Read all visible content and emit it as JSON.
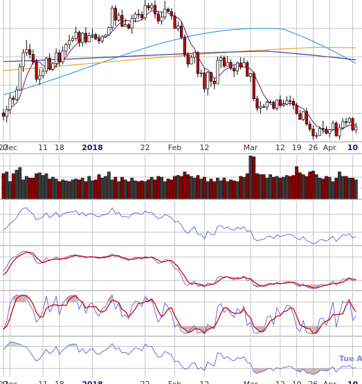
{
  "colors": {
    "background": "#ffffff",
    "panel_bg": "#ffffff",
    "grid": "#c4c4c4",
    "panel_border": "#9a9a9a",
    "candle_up": "#ffffff",
    "candle_down": "#c00000",
    "candle_outline": "#000000",
    "ma_short": "#8a2d8a",
    "ma_mid": "#3a3aa0",
    "ma_long": "#f0a030",
    "ma_blue": "#33a0e0",
    "volume_up": "#3a3a3a",
    "volume_down": "#8a0000",
    "indicator_line": "#6a6ae0",
    "signal_line": "#d01010",
    "fill": "#c8a8a8",
    "fill_green": "#b8d8b8"
  },
  "chart_data": {
    "type": "candlestick-with-indicators",
    "x_tick_labels": [
      {
        "label": "27",
        "index": 0
      },
      {
        "label": "Dec",
        "index": 2
      },
      {
        "label": "11",
        "index": 12
      },
      {
        "label": "18",
        "index": 17
      },
      {
        "label": "2018",
        "index": 27,
        "bold": true
      },
      {
        "label": "22",
        "index": 43
      },
      {
        "label": "Feb",
        "index": 52
      },
      {
        "label": "12",
        "index": 61
      },
      {
        "label": "Mar",
        "index": 75
      },
      {
        "label": "12",
        "index": 84
      },
      {
        "label": "19",
        "index": 89
      },
      {
        "label": "26",
        "index": 94
      },
      {
        "label": "Apr",
        "index": 99
      },
      {
        "label": "10",
        "index": 106,
        "bold": true
      }
    ],
    "corner_tag": "Tue A",
    "price_ylim": [
      82,
      132
    ],
    "candles": [
      [
        92.2,
        91.0,
        93.7,
        89.5
      ],
      [
        91.0,
        93.3,
        94.7,
        88.9
      ],
      [
        93.3,
        97.4,
        99.0,
        91.9
      ],
      [
        97.4,
        96.9,
        98.4,
        95.2
      ],
      [
        96.9,
        100.3,
        101.6,
        96.4
      ],
      [
        100.3,
        108.5,
        109.7,
        100.0
      ],
      [
        108.5,
        113.4,
        114.7,
        106.6
      ],
      [
        113.4,
        114.5,
        117.9,
        112.3
      ],
      [
        114.5,
        112.8,
        116.6,
        111.4
      ],
      [
        112.8,
        110.1,
        114.6,
        109.3
      ],
      [
        110.1,
        104.1,
        111.4,
        103.0
      ],
      [
        104.1,
        105.3,
        107.7,
        102.1
      ],
      [
        105.3,
        106.9,
        107.9,
        104.4
      ],
      [
        106.9,
        111.5,
        112.0,
        106.0
      ],
      [
        111.5,
        107.6,
        113.2,
        107.1
      ],
      [
        107.6,
        109.6,
        110.2,
        107.0
      ],
      [
        109.6,
        113.4,
        114.9,
        108.1
      ],
      [
        113.4,
        110.2,
        114.4,
        108.6
      ],
      [
        110.2,
        114.0,
        115.7,
        109.3
      ],
      [
        114.0,
        116.2,
        116.9,
        112.5
      ],
      [
        116.2,
        117.8,
        119.7,
        114.7
      ],
      [
        117.8,
        118.5,
        119.4,
        117.1
      ],
      [
        118.5,
        120.6,
        122.6,
        117.6
      ],
      [
        120.6,
        117.0,
        121.3,
        115.5
      ],
      [
        117.0,
        120.3,
        120.7,
        115.6
      ],
      [
        120.3,
        117.2,
        122.4,
        116.6
      ],
      [
        117.2,
        119.5,
        120.6,
        117.1
      ],
      [
        119.5,
        119.8,
        121.9,
        118.5
      ],
      [
        119.8,
        118.3,
        120.3,
        117.8
      ],
      [
        118.3,
        117.6,
        119.8,
        116.5
      ],
      [
        117.6,
        119.1,
        119.6,
        116.7
      ],
      [
        119.1,
        119.7,
        119.9,
        118.7
      ],
      [
        119.7,
        122.3,
        122.7,
        119.7
      ],
      [
        122.3,
        129.1,
        130.1,
        121.4
      ],
      [
        129.1,
        124.9,
        130.2,
        122.9
      ],
      [
        124.9,
        126.6,
        127.6,
        124.4
      ],
      [
        126.6,
        122.7,
        128.6,
        122.5
      ],
      [
        122.7,
        123.3,
        125.4,
        122.8
      ],
      [
        123.3,
        122.1,
        123.9,
        121.6
      ],
      [
        122.1,
        125.5,
        126.8,
        120.1
      ],
      [
        125.5,
        127.0,
        127.8,
        124.1
      ],
      [
        127.0,
        126.9,
        128.7,
        125.3
      ],
      [
        126.9,
        125.8,
        128.0,
        124.8
      ],
      [
        125.8,
        130.0,
        132.0,
        124.9
      ],
      [
        130.0,
        129.2,
        131.0,
        128.1
      ],
      [
        129.2,
        130.1,
        131.0,
        128.3
      ],
      [
        130.1,
        127.1,
        131.9,
        125.5
      ],
      [
        127.1,
        124.6,
        128.2,
        123.6
      ],
      [
        124.6,
        126.0,
        127.7,
        123.3
      ],
      [
        126.0,
        128.8,
        131.7,
        125.1
      ],
      [
        128.8,
        127.9,
        129.4,
        127.9
      ],
      [
        127.9,
        126.4,
        129.1,
        125.1
      ],
      [
        126.4,
        122.0,
        127.7,
        121.8
      ],
      [
        122.0,
        122.8,
        124.4,
        120.9
      ],
      [
        122.8,
        118.9,
        124.4,
        118.1
      ],
      [
        118.9,
        112.7,
        119.8,
        111.8
      ],
      [
        112.7,
        109.4,
        113.7,
        108.2
      ],
      [
        109.4,
        111.8,
        112.5,
        109.3
      ],
      [
        111.8,
        113.5,
        113.8,
        109.7
      ],
      [
        113.5,
        106.1,
        113.9,
        104.8
      ],
      [
        106.1,
        106.3,
        107.5,
        104.8
      ],
      [
        106.3,
        100.7,
        108.1,
        99.4
      ],
      [
        100.7,
        106.5,
        107.0,
        98.4
      ],
      [
        106.5,
        103.4,
        106.7,
        101.4
      ],
      [
        103.4,
        102.5,
        104.5,
        100.6
      ],
      [
        102.5,
        110.7,
        112.1,
        102.5
      ],
      [
        110.7,
        111.6,
        112.5,
        108.0
      ],
      [
        111.6,
        108.7,
        112.4,
        108.0
      ],
      [
        108.7,
        110.0,
        112.3,
        109.2
      ],
      [
        110.0,
        107.9,
        111.1,
        107.3
      ],
      [
        107.9,
        107.0,
        109.0,
        104.8
      ],
      [
        107.0,
        109.8,
        110.3,
        105.7
      ],
      [
        109.8,
        108.3,
        111.8,
        107.5
      ],
      [
        108.3,
        109.9,
        111.6,
        108.3
      ],
      [
        109.9,
        105.1,
        110.6,
        104.9
      ],
      [
        105.1,
        106.1,
        106.3,
        103.2
      ],
      [
        106.1,
        97.2,
        106.9,
        96.3
      ],
      [
        97.2,
        93.9,
        98.2,
        92.8
      ],
      [
        93.9,
        94.4,
        96.3,
        92.0
      ],
      [
        94.4,
        94.2,
        95.4,
        94.2
      ],
      [
        94.2,
        96.0,
        96.5,
        93.1
      ],
      [
        96.0,
        96.0,
        96.8,
        95.8
      ],
      [
        96.0,
        93.8,
        96.5,
        93.3
      ],
      [
        93.8,
        96.8,
        96.9,
        93.0
      ],
      [
        96.8,
        94.8,
        98.4,
        93.9
      ],
      [
        94.8,
        95.3,
        96.8,
        94.3
      ],
      [
        95.3,
        96.5,
        98.0,
        94.8
      ],
      [
        96.5,
        96.3,
        98.3,
        94.7
      ],
      [
        96.3,
        94.9,
        97.4,
        93.3
      ],
      [
        94.9,
        92.0,
        95.8,
        91.5
      ],
      [
        92.0,
        89.9,
        93.3,
        89.9
      ],
      [
        89.9,
        92.7,
        92.9,
        89.3
      ],
      [
        92.7,
        88.3,
        94.0,
        87.6
      ],
      [
        88.3,
        86.5,
        89.5,
        85.6
      ],
      [
        86.5,
        84.1,
        87.8,
        82.8
      ],
      [
        84.1,
        84.2,
        85.3,
        83.1
      ],
      [
        84.2,
        86.7,
        87.5,
        84.3
      ],
      [
        86.7,
        86.5,
        89.4,
        84.9
      ],
      [
        86.5,
        85.0,
        87.5,
        84.6
      ],
      [
        85.0,
        86.3,
        86.6,
        83.7
      ],
      [
        86.3,
        88.6,
        89.5,
        86.3
      ],
      [
        88.6,
        84.1,
        89.4,
        83.8
      ],
      [
        84.1,
        86.9,
        88.3,
        82.8
      ],
      [
        86.9,
        89.1,
        90.3,
        86.3
      ],
      [
        89.1,
        88.9,
        90.5,
        87.6
      ],
      [
        88.9,
        90.2,
        90.8,
        88.4
      ],
      [
        90.2,
        86.2,
        90.7,
        85.7
      ],
      [
        86.2,
        87.2,
        88.7,
        85.0
      ]
    ],
    "volume": [
      58,
      62,
      40,
      58,
      66,
      72,
      44,
      52,
      48,
      48,
      58,
      60,
      54,
      58,
      46,
      50,
      46,
      40,
      44,
      42,
      40,
      44,
      46,
      44,
      48,
      40,
      52,
      42,
      44,
      56,
      48,
      52,
      62,
      44,
      50,
      40,
      50,
      44,
      40,
      48,
      42,
      40,
      42,
      40,
      44,
      50,
      44,
      52,
      50,
      40,
      46,
      44,
      52,
      54,
      52,
      62,
      56,
      52,
      48,
      54,
      46,
      50,
      40,
      46,
      40,
      48,
      42,
      48,
      40,
      44,
      42,
      40,
      52,
      50,
      58,
      98,
      96,
      58,
      56,
      56,
      48,
      56,
      50,
      52,
      48,
      50,
      54,
      52,
      54,
      74,
      60,
      56,
      52,
      62,
      64,
      56,
      48,
      46,
      52,
      50,
      40,
      48,
      62,
      52,
      52,
      48,
      48,
      44
    ],
    "volume_ylim": [
      0,
      100
    ],
    "ind1": [
      35,
      40,
      49,
      55,
      62,
      76,
      83,
      84,
      76,
      70,
      57,
      61,
      64,
      73,
      62,
      67,
      74,
      64,
      70,
      73,
      74,
      75,
      78,
      68,
      74,
      66,
      71,
      71,
      66,
      64,
      68,
      69,
      73,
      84,
      71,
      74,
      64,
      65,
      62,
      70,
      73,
      72,
      69,
      77,
      73,
      74,
      66,
      60,
      63,
      69,
      66,
      62,
      52,
      54,
      46,
      33,
      27,
      36,
      42,
      25,
      26,
      15,
      32,
      25,
      24,
      43,
      45,
      38,
      42,
      36,
      34,
      41,
      37,
      42,
      31,
      34,
      15,
      11,
      13,
      14,
      20,
      21,
      16,
      24,
      20,
      22,
      25,
      25,
      22,
      16,
      13,
      20,
      11,
      8,
      4,
      6,
      13,
      13,
      10,
      15,
      21,
      9,
      17,
      24,
      23,
      27,
      17,
      20
    ],
    "stoch_slow_k": [
      44,
      56,
      72,
      79,
      82,
      90,
      94,
      94,
      89,
      83,
      66,
      63,
      67,
      78,
      71,
      74,
      80,
      72,
      76,
      79,
      83,
      84,
      86,
      79,
      82,
      77,
      81,
      81,
      78,
      76,
      80,
      81,
      83,
      88,
      80,
      82,
      75,
      75,
      71,
      76,
      79,
      78,
      75,
      82,
      78,
      79,
      72,
      64,
      66,
      74,
      72,
      66,
      50,
      48,
      32,
      12,
      8,
      14,
      18,
      5,
      8,
      4,
      14,
      12,
      11,
      28,
      32,
      27,
      30,
      25,
      22,
      29,
      26,
      32,
      20,
      24,
      8,
      4,
      6,
      7,
      12,
      14,
      9,
      16,
      12,
      14,
      17,
      17,
      14,
      8,
      5,
      12,
      4,
      1,
      0,
      2,
      9,
      10,
      7,
      12,
      19,
      8,
      16,
      24,
      24,
      28,
      19,
      22
    ],
    "stoch_slow_d": [
      35,
      42,
      57,
      69,
      78,
      84,
      88,
      92,
      92,
      89,
      79,
      71,
      65,
      69,
      72,
      74,
      75,
      75,
      76,
      76,
      79,
      82,
      84,
      83,
      82,
      80,
      80,
      80,
      80,
      78,
      78,
      79,
      81,
      84,
      84,
      83,
      79,
      77,
      74,
      74,
      75,
      78,
      77,
      78,
      78,
      80,
      76,
      72,
      67,
      68,
      71,
      71,
      63,
      55,
      43,
      31,
      17,
      11,
      13,
      12,
      10,
      6,
      9,
      10,
      12,
      17,
      24,
      29,
      30,
      27,
      26,
      25,
      26,
      29,
      26,
      25,
      17,
      12,
      6,
      6,
      8,
      11,
      12,
      13,
      12,
      14,
      14,
      16,
      16,
      13,
      9,
      8,
      7,
      5,
      2,
      1,
      4,
      7,
      9,
      10,
      13,
      13,
      14,
      16,
      21,
      25,
      24,
      23
    ],
    "stoch_fast_k": [
      10,
      33,
      76,
      92,
      98,
      96,
      98,
      94,
      72,
      60,
      30,
      40,
      58,
      95,
      55,
      70,
      95,
      48,
      77,
      88,
      95,
      96,
      97,
      62,
      82,
      52,
      74,
      78,
      55,
      45,
      64,
      68,
      88,
      98,
      62,
      78,
      44,
      48,
      38,
      70,
      82,
      80,
      69,
      94,
      84,
      87,
      55,
      30,
      44,
      78,
      67,
      52,
      18,
      25,
      8,
      2,
      3,
      14,
      22,
      2,
      6,
      1,
      25,
      18,
      12,
      68,
      76,
      54,
      64,
      50,
      42,
      64,
      54,
      70,
      22,
      30,
      4,
      2,
      8,
      10,
      42,
      46,
      24,
      66,
      48,
      55,
      72,
      70,
      50,
      16,
      6,
      34,
      4,
      2,
      1,
      5,
      38,
      40,
      22,
      46,
      80,
      18,
      52,
      82,
      78,
      88,
      34,
      46
    ],
    "stoch_fast_d": [
      12,
      20,
      40,
      67,
      89,
      95,
      97,
      96,
      88,
      75,
      54,
      43,
      43,
      64,
      69,
      73,
      73,
      71,
      73,
      71,
      87,
      93,
      96,
      85,
      80,
      65,
      69,
      68,
      69,
      59,
      55,
      59,
      73,
      85,
      83,
      79,
      61,
      57,
      43,
      52,
      63,
      77,
      77,
      81,
      82,
      88,
      75,
      57,
      43,
      51,
      63,
      66,
      46,
      32,
      17,
      12,
      4,
      6,
      13,
      13,
      10,
      3,
      11,
      15,
      18,
      33,
      52,
      66,
      65,
      56,
      52,
      52,
      53,
      63,
      49,
      41,
      19,
      12,
      5,
      7,
      20,
      33,
      37,
      45,
      46,
      56,
      58,
      66,
      64,
      45,
      24,
      19,
      15,
      13,
      2,
      3,
      15,
      28,
      33,
      36,
      49,
      48,
      50,
      51,
      71,
      83,
      67,
      56
    ],
    "ind4": [
      70,
      82,
      91,
      92,
      88,
      86,
      80,
      78,
      66,
      52,
      40,
      46,
      58,
      72,
      60,
      66,
      80,
      58,
      70,
      76,
      84,
      86,
      86,
      64,
      74,
      60,
      70,
      74,
      62,
      58,
      66,
      70,
      76,
      88,
      72,
      76,
      62,
      64,
      58,
      68,
      76,
      74,
      68,
      86,
      80,
      80,
      62,
      50,
      52,
      66,
      62,
      56,
      38,
      40,
      28,
      18,
      20,
      32,
      36,
      18,
      22,
      14,
      38,
      30,
      26,
      62,
      60,
      46,
      52,
      44,
      40,
      50,
      46,
      52,
      36,
      34,
      10,
      6,
      10,
      12,
      18,
      20,
      14,
      22,
      18,
      22,
      24,
      26,
      20,
      14,
      10,
      18,
      8,
      6,
      4,
      6,
      14,
      16,
      12,
      18,
      24,
      10,
      20,
      26,
      24,
      28,
      20,
      22
    ]
  }
}
